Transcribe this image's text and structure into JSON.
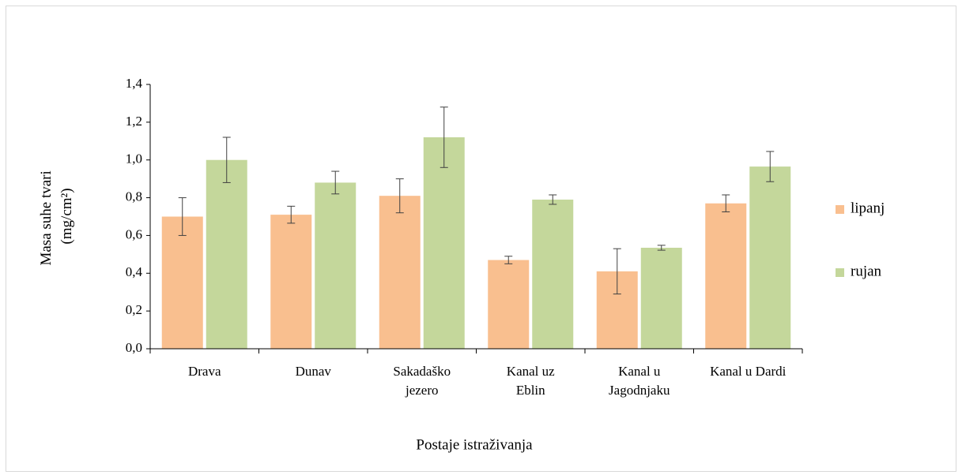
{
  "chart_data": {
    "type": "bar",
    "ylabel": [
      "Masa suhe tvari",
      "(mg/cm²)"
    ],
    "xlabel": "Postaje istraživanja",
    "categories": [
      [
        "Drava"
      ],
      [
        "Dunav"
      ],
      [
        "Sakadaško",
        "jezero"
      ],
      [
        "Kanal uz",
        "Eblin"
      ],
      [
        "Kanal u",
        "Jagodnjaku"
      ],
      [
        "Kanal u Dardi"
      ]
    ],
    "series": [
      {
        "name": "lipanj",
        "color": "#f9bf8f",
        "values": [
          0.7,
          0.71,
          0.81,
          0.47,
          0.41,
          0.77
        ],
        "errors": [
          0.1,
          0.045,
          0.09,
          0.02,
          0.12,
          0.045
        ]
      },
      {
        "name": "rujan",
        "color": "#c4d79b",
        "values": [
          1.0,
          0.88,
          1.12,
          0.79,
          0.535,
          0.965
        ],
        "errors": [
          0.12,
          0.06,
          0.16,
          0.025,
          0.013,
          0.08
        ]
      }
    ],
    "ylim": [
      0,
      1.4
    ],
    "yticks": [
      {
        "value": 0,
        "label": "0,0"
      },
      {
        "value": 0.2,
        "label": "0,2"
      },
      {
        "value": 0.4,
        "label": "0,4"
      },
      {
        "value": 0.6,
        "label": "0,6"
      },
      {
        "value": 0.8,
        "label": "0,8"
      },
      {
        "value": 1.0,
        "label": "1,0"
      },
      {
        "value": 1.2,
        "label": "1,2"
      },
      {
        "value": 1.4,
        "label": "1,4"
      }
    ],
    "legend": "right"
  }
}
